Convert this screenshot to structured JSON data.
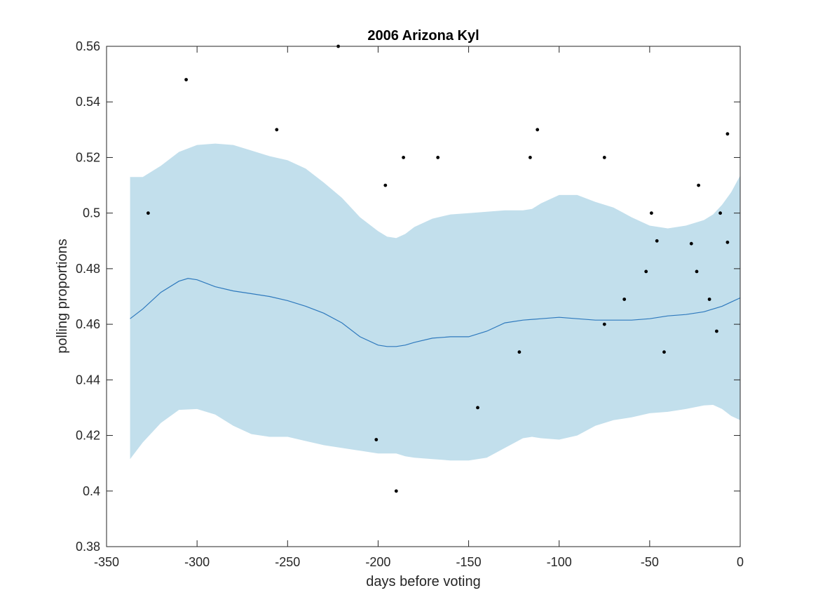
{
  "chart_data": {
    "type": "line",
    "title": "2006 Arizona Kyl",
    "xlabel": "days before voting",
    "ylabel": "polling proportions",
    "xlim": [
      -350,
      0
    ],
    "ylim": [
      0.38,
      0.56
    ],
    "xticks": [
      -350,
      -300,
      -250,
      -200,
      -150,
      -100,
      -50,
      0
    ],
    "xtick_labels": [
      "-350",
      "-300",
      "-250",
      "-200",
      "-150",
      "-100",
      "-50",
      "0"
    ],
    "yticks": [
      0.38,
      0.4,
      0.42,
      0.44,
      0.46,
      0.48,
      0.5,
      0.52,
      0.54,
      0.56
    ],
    "ytick_labels": [
      "0.38",
      "0.4",
      "0.42",
      "0.44",
      "0.46",
      "0.48",
      "0.5",
      "0.52",
      "0.54",
      "0.56"
    ],
    "grid": false,
    "colors": {
      "band": "#c2dfec",
      "mean_line": "#2e79bd",
      "points": "#000000",
      "axes": "#262626"
    },
    "band": {
      "x": [
        -337,
        -330,
        -320,
        -310,
        -300,
        -290,
        -280,
        -270,
        -260,
        -250,
        -240,
        -230,
        -220,
        -210,
        -200,
        -195,
        -190,
        -185,
        -180,
        -170,
        -160,
        -150,
        -140,
        -130,
        -120,
        -115,
        -110,
        -100,
        -90,
        -80,
        -70,
        -60,
        -50,
        -40,
        -30,
        -20,
        -15,
        -10,
        -5,
        0
      ],
      "upper": [
        0.513,
        0.513,
        0.517,
        0.522,
        0.5245,
        0.525,
        0.5245,
        0.5225,
        0.5205,
        0.519,
        0.516,
        0.511,
        0.5055,
        0.4985,
        0.4935,
        0.4915,
        0.491,
        0.4925,
        0.495,
        0.498,
        0.4995,
        0.5,
        0.5005,
        0.501,
        0.501,
        0.5015,
        0.5035,
        0.5065,
        0.5065,
        0.504,
        0.502,
        0.4985,
        0.4955,
        0.4945,
        0.4955,
        0.4975,
        0.4995,
        0.503,
        0.5075,
        0.5135
      ],
      "lower": [
        0.4115,
        0.4175,
        0.4245,
        0.4292,
        0.4295,
        0.4275,
        0.4235,
        0.4205,
        0.4195,
        0.4195,
        0.418,
        0.4165,
        0.4155,
        0.4145,
        0.4135,
        0.4135,
        0.4135,
        0.4125,
        0.412,
        0.4115,
        0.411,
        0.411,
        0.412,
        0.4155,
        0.419,
        0.4195,
        0.419,
        0.4185,
        0.42,
        0.4235,
        0.4255,
        0.4265,
        0.428,
        0.4285,
        0.4295,
        0.4308,
        0.431,
        0.4295,
        0.427,
        0.4255
      ]
    },
    "series": [
      {
        "x": [
          -337,
          -330,
          -320,
          -310,
          -305,
          -300,
          -290,
          -280,
          -270,
          -260,
          -250,
          -240,
          -230,
          -220,
          -210,
          -200,
          -195,
          -190,
          -185,
          -180,
          -170,
          -160,
          -150,
          -140,
          -130,
          -120,
          -110,
          -100,
          -90,
          -80,
          -70,
          -60,
          -50,
          -40,
          -30,
          -20,
          -10,
          -5,
          0
        ],
        "values": [
          0.462,
          0.4655,
          0.4715,
          0.4755,
          0.4765,
          0.476,
          0.4735,
          0.472,
          0.471,
          0.47,
          0.4685,
          0.4665,
          0.464,
          0.4605,
          0.4555,
          0.4525,
          0.452,
          0.452,
          0.4525,
          0.4535,
          0.455,
          0.4555,
          0.4555,
          0.4575,
          0.4605,
          0.4615,
          0.462,
          0.4625,
          0.462,
          0.4615,
          0.4615,
          0.4615,
          0.462,
          0.463,
          0.4635,
          0.4645,
          0.4665,
          0.468,
          0.4695
        ]
      },
      {
        "x": [
          -327,
          -306,
          -256,
          -222,
          -201,
          -196,
          -190,
          -186,
          -167,
          -145,
          -122,
          -116,
          -112,
          -75,
          -75,
          -64,
          -52,
          -49,
          -46,
          -42,
          -27,
          -24,
          -23,
          -17,
          -13,
          -11,
          -7,
          -7
        ],
        "values": [
          0.5,
          0.548,
          0.53,
          0.56,
          0.4185,
          0.51,
          0.4,
          0.52,
          0.52,
          0.43,
          0.45,
          0.52,
          0.53,
          0.52,
          0.46,
          0.469,
          0.479,
          0.5,
          0.49,
          0.45,
          0.489,
          0.479,
          0.51,
          0.469,
          0.4575,
          0.5,
          0.4895,
          0.5285
        ]
      }
    ]
  }
}
